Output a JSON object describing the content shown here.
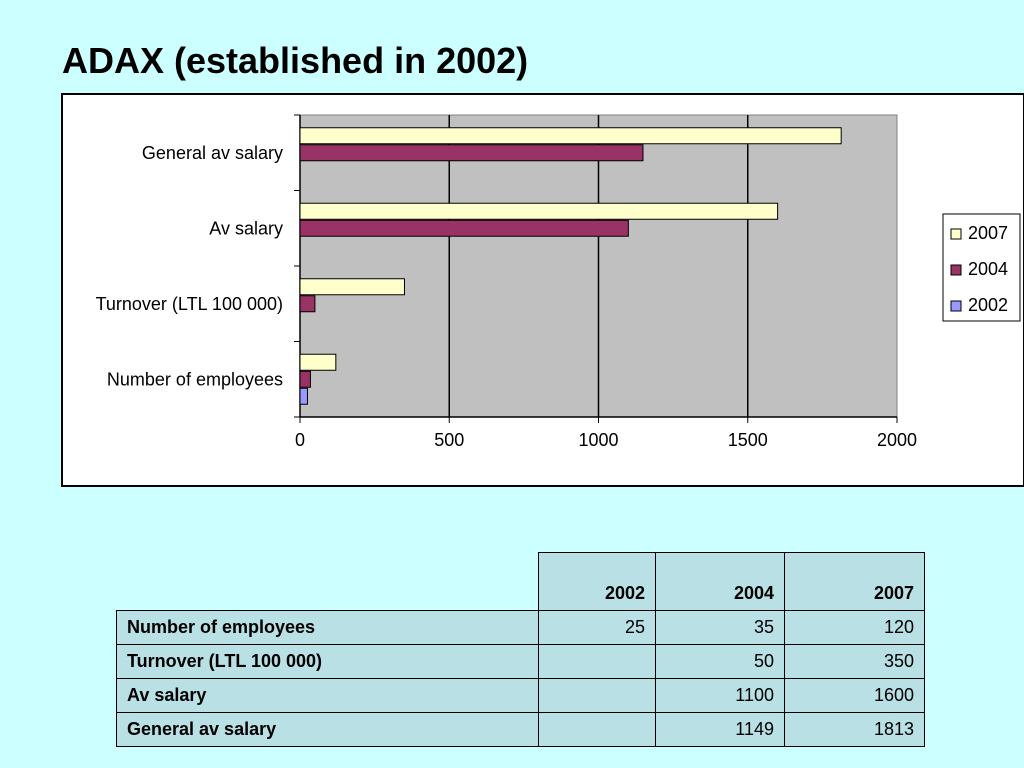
{
  "slide": {
    "title": "ADAX (established in 2002)"
  },
  "chart_data": {
    "type": "bar",
    "orientation": "horizontal",
    "categories": [
      "Number of employees",
      "Turnover (LTL 100 000)",
      "Av salary",
      "General av salary"
    ],
    "series": [
      {
        "name": "2002",
        "values": [
          25,
          null,
          null,
          null
        ],
        "color": "#9999ff"
      },
      {
        "name": "2004",
        "values": [
          35,
          50,
          1100,
          1149
        ],
        "color": "#993366"
      },
      {
        "name": "2007",
        "values": [
          120,
          350,
          1600,
          1813
        ],
        "color": "#ffffcc"
      }
    ],
    "xlim": [
      0,
      2000
    ],
    "xticks": [
      "0",
      "500",
      "1000",
      "1500",
      "2000"
    ],
    "xlabel": "",
    "ylabel": "",
    "grid": "vertical",
    "plot_background": "#c0c0c0",
    "legend_position": "right",
    "legend": [
      "2007",
      "2004",
      "2002"
    ]
  },
  "table": {
    "headers": [
      "",
      "2002",
      "2004",
      "2007"
    ],
    "rows": [
      {
        "label": "Number of employees",
        "values": [
          "25",
          "35",
          "120"
        ]
      },
      {
        "label": "Turnover (LTL 100 000)",
        "values": [
          "",
          "50",
          "350"
        ]
      },
      {
        "label": "Av salary",
        "values": [
          "",
          "1100",
          "1600"
        ]
      },
      {
        "label": "General av salary",
        "values": [
          "",
          "1149",
          "1813"
        ]
      }
    ]
  }
}
